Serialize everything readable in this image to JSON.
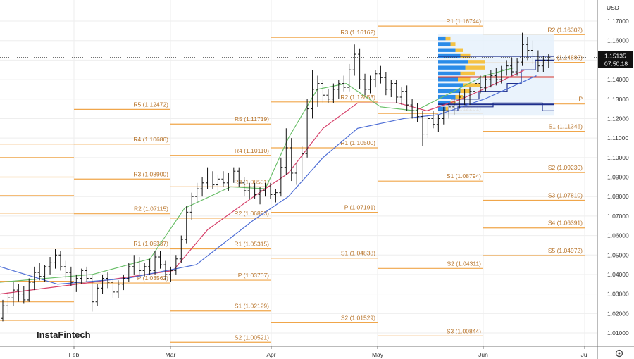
{
  "currency_label": "USD",
  "current_price": "1.15135",
  "countdown": "07:50:18",
  "logo_text": "InstaFintech",
  "icons": {
    "settings": "gear-icon"
  },
  "colors": {
    "candle": "#111111",
    "level": "#f0a64a",
    "level_text": "#b8742a",
    "ma_fast": "#6abf69",
    "ma_mid": "#d6406a",
    "ma_slow": "#4f6fd6",
    "profile_blue": "#2a8be8",
    "profile_yellow": "#f5c243",
    "box_fill": "#e6f1fc",
    "poc_red": "#d8342a",
    "box_line": "#1d2e8c",
    "price_tag": "#111111"
  },
  "chart_data": {
    "type": "candlestick",
    "y_axis": {
      "range": [
        1.0,
        1.175
      ],
      "ticks": [
        "1.01000",
        "1.02000",
        "1.03000",
        "1.04000",
        "1.05000",
        "1.06000",
        "1.07000",
        "1.08000",
        "1.09000",
        "1.10000",
        "1.11000",
        "1.12000",
        "1.13000",
        "1.14000",
        "1.15000",
        "1.16000",
        "1.17000"
      ]
    },
    "x_axis": {
      "labels": [
        "Feb",
        "Mar",
        "Apr",
        "May",
        "Jun",
        "Jul"
      ]
    },
    "pivot_levels": [
      {
        "period": "Jan",
        "x_start": "",
        "x_end": "Jan",
        "levels": [
          {
            "label": "",
            "price": 1.1069
          },
          {
            "label": "",
            "price": 1.1
          },
          {
            "label": "",
            "price": 1.09
          },
          {
            "label": "",
            "price": 1.0805
          },
          {
            "label": "",
            "price": 1.0715
          },
          {
            "label": "",
            "price": 1.0535
          },
          {
            "label": "",
            "price": 1.0365
          },
          {
            "label": "",
            "price": 1.026
          },
          {
            "label": "",
            "price": 1.0165
          }
        ]
      },
      {
        "period": "Feb",
        "x_start": "Feb",
        "x_end": "Mar",
        "levels": [
          {
            "label": "R5 (1.12472)",
            "price": 1.12472
          },
          {
            "label": "R4 (1.10686)",
            "price": 1.10686
          },
          {
            "label": "R3 (1.08900)",
            "price": 1.089
          },
          {
            "label": "R2 (1.07115)",
            "price": 1.07115
          },
          {
            "label": "R1 (1.05337)",
            "price": 1.05337
          },
          {
            "label": "P (1.03562)",
            "price": 1.03562
          }
        ]
      },
      {
        "period": "Mar",
        "x_start": "Mar",
        "x_end": "Apr",
        "levels": [
          {
            "label": "R5 (1.11719)",
            "price": 1.11719
          },
          {
            "label": "R4 (1.10110)",
            "price": 1.1011
          },
          {
            "label": "R3 (1.08501)",
            "price": 1.08501
          },
          {
            "label": "R2 (1.06893)",
            "price": 1.06893
          },
          {
            "label": "R1 (1.05315)",
            "price": 1.05315
          },
          {
            "label": "P (1.03707)",
            "price": 1.03707
          },
          {
            "label": "S1 (1.02129)",
            "price": 1.02129
          },
          {
            "label": "S2 (1.00521)",
            "price": 1.00521
          }
        ]
      },
      {
        "period": "Apr",
        "x_start": "Apr",
        "x_end": "May",
        "levels": [
          {
            "label": "R3 (1.16162)",
            "price": 1.16162
          },
          {
            "label": "R2 (1.12853)",
            "price": 1.12853
          },
          {
            "label": "R1 (1.10500)",
            "price": 1.105
          },
          {
            "label": "P (1.07191)",
            "price": 1.07191
          },
          {
            "label": "S1 (1.04838)",
            "price": 1.04838
          },
          {
            "label": "S2 (1.01529)",
            "price": 1.01529
          }
        ]
      },
      {
        "period": "May",
        "x_start": "May",
        "x_end": "Jun",
        "levels": [
          {
            "label": "R1 (1.16744)",
            "price": 1.16744
          },
          {
            "label": "P (1.12261)",
            "price": 1.12261
          },
          {
            "label": "S1 (1.08794)",
            "price": 1.08794
          },
          {
            "label": "S2 (1.04311)",
            "price": 1.04311
          },
          {
            "label": "S3 (1.00844)",
            "price": 1.00844
          }
        ]
      },
      {
        "period": "Jun",
        "x_start": "Jun",
        "x_end": "Jul",
        "levels": [
          {
            "label": "R2 (1.16302)",
            "price": 1.16302
          },
          {
            "label": "R1 (1.14882)",
            "price": 1.14882
          },
          {
            "label": "P",
            "price": 1.1275
          },
          {
            "label": "S1 (1.11346)",
            "price": 1.11346
          },
          {
            "label": "S2 (1.09230)",
            "price": 1.0923
          },
          {
            "label": "S3 (1.07810)",
            "price": 1.0781
          },
          {
            "label": "S4 (1.06391)",
            "price": 1.06391
          },
          {
            "label": "S5 (1.04972)",
            "price": 1.04972
          }
        ]
      }
    ],
    "ohlc": [
      [
        1.0175,
        1.027,
        1.016,
        1.024
      ],
      [
        1.024,
        1.031,
        1.02,
        1.028
      ],
      [
        1.028,
        1.036,
        1.024,
        1.032
      ],
      [
        1.032,
        1.035,
        1.026,
        1.03
      ],
      [
        1.03,
        1.034,
        1.025,
        1.027
      ],
      [
        1.027,
        1.038,
        1.026,
        1.036
      ],
      [
        1.036,
        1.044,
        1.032,
        1.041
      ],
      [
        1.041,
        1.046,
        1.037,
        1.039
      ],
      [
        1.039,
        1.045,
        1.036,
        1.044
      ],
      [
        1.044,
        1.049,
        1.04,
        1.046
      ],
      [
        1.046,
        1.053,
        1.043,
        1.05
      ],
      [
        1.05,
        1.052,
        1.042,
        1.044
      ],
      [
        1.044,
        1.047,
        1.038,
        1.041
      ],
      [
        1.041,
        1.044,
        1.034,
        1.036
      ],
      [
        1.036,
        1.04,
        1.031,
        1.038
      ],
      [
        1.038,
        1.043,
        1.035,
        1.042
      ],
      [
        1.042,
        1.044,
        1.036,
        1.038
      ],
      [
        1.038,
        1.04,
        1.021,
        1.026
      ],
      [
        1.026,
        1.035,
        1.024,
        1.033
      ],
      [
        1.033,
        1.04,
        1.03,
        1.038
      ],
      [
        1.038,
        1.041,
        1.033,
        1.036
      ],
      [
        1.036,
        1.038,
        1.028,
        1.031
      ],
      [
        1.031,
        1.037,
        1.028,
        1.035
      ],
      [
        1.035,
        1.04,
        1.032,
        1.038
      ],
      [
        1.038,
        1.046,
        1.036,
        1.044
      ],
      [
        1.044,
        1.05,
        1.04,
        1.046
      ],
      [
        1.046,
        1.049,
        1.04,
        1.042
      ],
      [
        1.042,
        1.046,
        1.039,
        1.044
      ],
      [
        1.044,
        1.048,
        1.04,
        1.042
      ],
      [
        1.042,
        1.052,
        1.04,
        1.049
      ],
      [
        1.049,
        1.052,
        1.043,
        1.045
      ],
      [
        1.045,
        1.047,
        1.037,
        1.04
      ],
      [
        1.04,
        1.044,
        1.036,
        1.042
      ],
      [
        1.042,
        1.05,
        1.04,
        1.048
      ],
      [
        1.048,
        1.06,
        1.046,
        1.058
      ],
      [
        1.058,
        1.075,
        1.056,
        1.072
      ],
      [
        1.072,
        1.082,
        1.068,
        1.08
      ],
      [
        1.08,
        1.087,
        1.077,
        1.084
      ],
      [
        1.084,
        1.09,
        1.08,
        1.087
      ],
      [
        1.087,
        1.095,
        1.084,
        1.09
      ],
      [
        1.09,
        1.093,
        1.084,
        1.086
      ],
      [
        1.086,
        1.091,
        1.083,
        1.089
      ],
      [
        1.089,
        1.093,
        1.085,
        1.087
      ],
      [
        1.087,
        1.092,
        1.083,
        1.09
      ],
      [
        1.09,
        1.095,
        1.087,
        1.093
      ],
      [
        1.093,
        1.095,
        1.085,
        1.087
      ],
      [
        1.087,
        1.09,
        1.08,
        1.083
      ],
      [
        1.083,
        1.087,
        1.079,
        1.085
      ],
      [
        1.085,
        1.087,
        1.079,
        1.081
      ],
      [
        1.081,
        1.085,
        1.076,
        1.083
      ],
      [
        1.083,
        1.087,
        1.08,
        1.085
      ],
      [
        1.085,
        1.087,
        1.079,
        1.081
      ],
      [
        1.081,
        1.084,
        1.077,
        1.082
      ],
      [
        1.082,
        1.1,
        1.08,
        1.095
      ],
      [
        1.095,
        1.115,
        1.091,
        1.105
      ],
      [
        1.105,
        1.11,
        1.088,
        1.092
      ],
      [
        1.092,
        1.097,
        1.086,
        1.09
      ],
      [
        1.09,
        1.106,
        1.088,
        1.102
      ],
      [
        1.102,
        1.13,
        1.1,
        1.125
      ],
      [
        1.125,
        1.145,
        1.12,
        1.135
      ],
      [
        1.135,
        1.142,
        1.126,
        1.138
      ],
      [
        1.138,
        1.14,
        1.128,
        1.132
      ],
      [
        1.132,
        1.135,
        1.128,
        1.13
      ],
      [
        1.13,
        1.138,
        1.128,
        1.135
      ],
      [
        1.135,
        1.14,
        1.13,
        1.138
      ],
      [
        1.138,
        1.142,
        1.134,
        1.136
      ],
      [
        1.136,
        1.148,
        1.134,
        1.145
      ],
      [
        1.145,
        1.158,
        1.142,
        1.153
      ],
      [
        1.153,
        1.156,
        1.135,
        1.14
      ],
      [
        1.14,
        1.143,
        1.132,
        1.135
      ],
      [
        1.135,
        1.142,
        1.133,
        1.14
      ],
      [
        1.14,
        1.145,
        1.136,
        1.143
      ],
      [
        1.143,
        1.147,
        1.138,
        1.141
      ],
      [
        1.141,
        1.144,
        1.132,
        1.135
      ],
      [
        1.135,
        1.14,
        1.131,
        1.138
      ],
      [
        1.138,
        1.14,
        1.128,
        1.131
      ],
      [
        1.131,
        1.136,
        1.127,
        1.134
      ],
      [
        1.134,
        1.137,
        1.124,
        1.127
      ],
      [
        1.127,
        1.13,
        1.12,
        1.124
      ],
      [
        1.124,
        1.128,
        1.118,
        1.121
      ],
      [
        1.121,
        1.124,
        1.106,
        1.112
      ],
      [
        1.112,
        1.122,
        1.11,
        1.12
      ],
      [
        1.12,
        1.124,
        1.115,
        1.117
      ],
      [
        1.117,
        1.122,
        1.113,
        1.12
      ],
      [
        1.12,
        1.126,
        1.117,
        1.124
      ],
      [
        1.124,
        1.128,
        1.12,
        1.126
      ],
      [
        1.126,
        1.13,
        1.122,
        1.128
      ],
      [
        1.128,
        1.134,
        1.125,
        1.131
      ],
      [
        1.131,
        1.135,
        1.127,
        1.129
      ],
      [
        1.129,
        1.136,
        1.127,
        1.134
      ],
      [
        1.134,
        1.14,
        1.132,
        1.138
      ],
      [
        1.138,
        1.142,
        1.133,
        1.136
      ],
      [
        1.136,
        1.142,
        1.134,
        1.14
      ],
      [
        1.14,
        1.145,
        1.136,
        1.142
      ],
      [
        1.142,
        1.146,
        1.137,
        1.14
      ],
      [
        1.14,
        1.147,
        1.138,
        1.145
      ],
      [
        1.145,
        1.15,
        1.142,
        1.147
      ],
      [
        1.147,
        1.151,
        1.142,
        1.144
      ],
      [
        1.144,
        1.151,
        1.142,
        1.149
      ],
      [
        1.149,
        1.164,
        1.147,
        1.158
      ],
      [
        1.158,
        1.162,
        1.15,
        1.155
      ],
      [
        1.155,
        1.16,
        1.148,
        1.152
      ],
      [
        1.152,
        1.155,
        1.144,
        1.147
      ],
      [
        1.147,
        1.152,
        1.144,
        1.15
      ],
      [
        1.15,
        1.153,
        1.146,
        1.15135
      ]
    ],
    "moving_averages": [
      {
        "color": "ma_fast",
        "points": [
          [
            1.039,
            1.036
          ],
          [
            0.16,
            1.04
          ],
          [
            0.26,
            1.048
          ],
          [
            0.32,
            1.074
          ],
          [
            0.4,
            1.085
          ],
          [
            0.46,
            1.084
          ],
          [
            0.5,
            1.11
          ],
          [
            0.55,
            1.135
          ],
          [
            0.6,
            1.138
          ],
          [
            0.66,
            1.126
          ],
          [
            0.72,
            1.124
          ],
          [
            0.78,
            1.133
          ],
          [
            0.84,
            1.142
          ],
          [
            0.89,
            1.146
          ]
        ]
      },
      {
        "color": "ma_mid",
        "points": [
          [
            0.0,
            1.03
          ],
          [
            0.16,
            1.036
          ],
          [
            0.3,
            1.042
          ],
          [
            0.36,
            1.063
          ],
          [
            0.44,
            1.08
          ],
          [
            0.5,
            1.092
          ],
          [
            0.56,
            1.115
          ],
          [
            0.62,
            1.128
          ],
          [
            0.69,
            1.128
          ],
          [
            0.74,
            1.124
          ],
          [
            0.8,
            1.13
          ],
          [
            0.86,
            1.138
          ],
          [
            0.91,
            1.145
          ]
        ]
      },
      {
        "color": "ma_slow",
        "points": [
          [
            0.0,
            1.044
          ],
          [
            0.1,
            1.035
          ],
          [
            0.22,
            1.038
          ],
          [
            0.34,
            1.045
          ],
          [
            0.44,
            1.068
          ],
          [
            0.5,
            1.08
          ],
          [
            0.56,
            1.1
          ],
          [
            0.62,
            1.115
          ],
          [
            0.7,
            1.12
          ],
          [
            0.76,
            1.122
          ],
          [
            0.84,
            1.13
          ],
          [
            0.93,
            1.142
          ]
        ]
      }
    ]
  }
}
